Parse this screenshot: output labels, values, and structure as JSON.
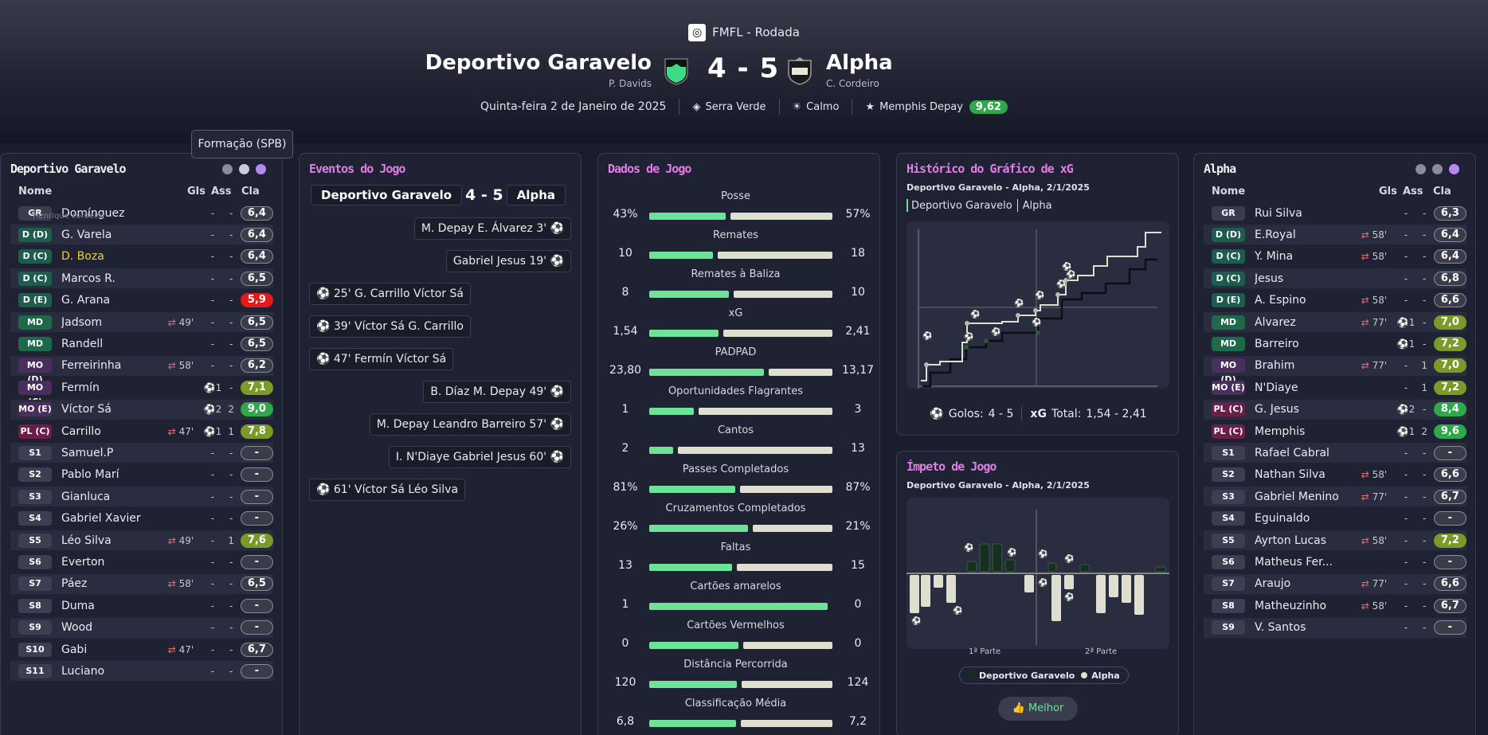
{
  "header": {
    "competition": "FMFL - Rodada",
    "home_team": "Deportivo Garavelo",
    "home_coach": "P. Davids",
    "away_team": "Alpha",
    "away_coach": "C. Cordeiro",
    "score": "4 - 5",
    "date": "Quinta-feira 2 de Janeiro de 2025",
    "stadium": "Serra Verde",
    "weather": "Calmo",
    "potm_name": "Memphis Depay",
    "potm_rating": "9,62"
  },
  "tooltip": "Formação (SPB)",
  "home_panel": {
    "title": "Deportivo Garavelo",
    "h_name": "Nome",
    "h_gls": "Gls",
    "h_ass": "Ass",
    "h_cla": "Cla",
    "ghost_name": "Henrique cordeiro",
    "players": [
      {
        "pos": "GR",
        "name": "Domínguez",
        "sub": "",
        "gls": "-",
        "ass": "-",
        "rating": "6,4"
      },
      {
        "pos": "D (D)",
        "name": "G. Varela",
        "sub": "",
        "gls": "-",
        "ass": "-",
        "rating": "6,4"
      },
      {
        "pos": "D (C)",
        "name": "D. Boza",
        "sub": "",
        "gls": "-",
        "ass": "-",
        "rating": "6,4"
      },
      {
        "pos": "D (C)",
        "name": "Marcos R.",
        "sub": "",
        "gls": "-",
        "ass": "-",
        "rating": "6,5"
      },
      {
        "pos": "D (E)",
        "name": "G. Arana",
        "sub": "",
        "gls": "-",
        "ass": "-",
        "rating": "5,9"
      },
      {
        "pos": "MD",
        "name": "Jadsom",
        "sub": "49'",
        "gls": "-",
        "ass": "-",
        "rating": "6,5"
      },
      {
        "pos": "MD",
        "name": "Randell",
        "sub": "",
        "gls": "-",
        "ass": "-",
        "rating": "6,5"
      },
      {
        "pos": "MO (D)",
        "name": "Ferreirinha",
        "sub": "58'",
        "gls": "-",
        "ass": "-",
        "rating": "6,2"
      },
      {
        "pos": "MO (C)",
        "name": "Fermín",
        "sub": "",
        "gls": "1",
        "ass": "-",
        "rating": "7,1"
      },
      {
        "pos": "MO (E)",
        "name": "Víctor Sá",
        "sub": "",
        "gls": "2",
        "ass": "2",
        "rating": "9,0"
      },
      {
        "pos": "PL (C)",
        "name": "Carrillo",
        "sub": "47'",
        "gls": "1",
        "ass": "1",
        "rating": "7,8"
      },
      {
        "pos": "S1",
        "name": "Samuel.P",
        "sub": "",
        "gls": "-",
        "ass": "-",
        "rating": "-"
      },
      {
        "pos": "S2",
        "name": "Pablo Marí",
        "sub": "",
        "gls": "-",
        "ass": "-",
        "rating": "-"
      },
      {
        "pos": "S3",
        "name": "Gianluca",
        "sub": "",
        "gls": "-",
        "ass": "-",
        "rating": "-"
      },
      {
        "pos": "S4",
        "name": "Gabriel Xavier",
        "sub": "",
        "gls": "-",
        "ass": "-",
        "rating": "-"
      },
      {
        "pos": "S5",
        "name": "Léo Silva",
        "sub": "49'",
        "gls": "-",
        "ass": "1",
        "rating": "7,6"
      },
      {
        "pos": "S6",
        "name": "Éverton",
        "sub": "",
        "gls": "-",
        "ass": "-",
        "rating": "-"
      },
      {
        "pos": "S7",
        "name": "Páez",
        "sub": "58'",
        "gls": "-",
        "ass": "-",
        "rating": "6,5"
      },
      {
        "pos": "S8",
        "name": "Duma",
        "sub": "",
        "gls": "-",
        "ass": "-",
        "rating": "-"
      },
      {
        "pos": "S9",
        "name": "Wood",
        "sub": "",
        "gls": "-",
        "ass": "-",
        "rating": "-"
      },
      {
        "pos": "S10",
        "name": "Gabi",
        "sub": "47'",
        "gls": "-",
        "ass": "-",
        "rating": "6,7"
      },
      {
        "pos": "S11",
        "name": "Luciano",
        "sub": "",
        "gls": "-",
        "ass": "-",
        "rating": "-"
      }
    ]
  },
  "events_panel": {
    "title": "Eventos do Jogo",
    "home": "Deportivo Garavelo",
    "score": "4 - 5",
    "away": "Alpha",
    "events": [
      {
        "side": "away",
        "text": "M. Depay  E. Álvarez 3'"
      },
      {
        "side": "away",
        "text": "Gabriel Jesus 19'"
      },
      {
        "side": "home",
        "text": "25'  G. Carrillo  Víctor Sá"
      },
      {
        "side": "home",
        "text": "39'  Víctor Sá  G. Carrillo"
      },
      {
        "side": "home",
        "text": "47'  Fermín  Víctor Sá"
      },
      {
        "side": "away",
        "text": "B. Díaz  M. Depay 49'"
      },
      {
        "side": "away",
        "text": "M. Depay  Leandro Barreiro 57'"
      },
      {
        "side": "away",
        "text": "I. N'Diaye  Gabriel Jesus 60'"
      },
      {
        "side": "home",
        "text": "61'  Víctor Sá  Léo Silva"
      }
    ]
  },
  "stats_panel": {
    "title": "Dados de Jogo",
    "stats": [
      {
        "label": "Posse",
        "home": "43%",
        "away": "57%",
        "hv": 43,
        "av": 57
      },
      {
        "label": "Remates",
        "home": "10",
        "away": "18",
        "hv": 10,
        "av": 18
      },
      {
        "label": "Remates à Baliza",
        "home": "8",
        "away": "10",
        "hv": 8,
        "av": 10
      },
      {
        "label": "xG",
        "home": "1,54",
        "away": "2,41",
        "hv": 1.54,
        "av": 2.41
      },
      {
        "label": "PADPAD",
        "home": "23,80",
        "away": "13,17",
        "hv": 23.8,
        "av": 13.17
      },
      {
        "label": "Oportunidades Flagrantes",
        "home": "1",
        "away": "3",
        "hv": 1,
        "av": 3
      },
      {
        "label": "Cantos",
        "home": "2",
        "away": "13",
        "hv": 2,
        "av": 13
      },
      {
        "label": "Passes Completados",
        "home": "81%",
        "away": "87%",
        "hv": 81,
        "av": 87
      },
      {
        "label": "Cruzamentos Completados",
        "home": "26%",
        "away": "21%",
        "hv": 26,
        "av": 21
      },
      {
        "label": "Faltas",
        "home": "13",
        "away": "15",
        "hv": 13,
        "av": 15
      },
      {
        "label": "Cartões amarelos",
        "home": "1",
        "away": "0",
        "hv": 1,
        "av": 0
      },
      {
        "label": "Cartões Vermelhos",
        "home": "0",
        "away": "0",
        "hv": 0,
        "av": 0
      },
      {
        "label": "Distância Percorrida",
        "home": "120",
        "away": "124",
        "hv": 120,
        "av": 124
      },
      {
        "label": "Classificação Média",
        "home": "6,8",
        "away": "7,2",
        "hv": 6.8,
        "av": 7.2
      }
    ]
  },
  "xg_panel": {
    "title": "Histórico do Gráfico de xG",
    "subtitle": "Deportivo Garavelo - Alpha, 2/1/2025",
    "legend_home": "Deportivo Garavelo",
    "legend_away": "Alpha",
    "goals_label": "Golos:",
    "goals_value": "4 - 5",
    "xg_label": "xG",
    "total_label": "Total:",
    "total_value": "1,54  -  2,41"
  },
  "momentum_panel": {
    "title": "Ímpeto de Jogo",
    "subtitle": "Deportivo Garavelo - Alpha, 2/1/2025",
    "half1": "1ª Parte",
    "half2": "2ª Parte",
    "legend_home": "Deportivo Garavelo",
    "legend_away": "Alpha",
    "button": "Melhor"
  },
  "away_panel": {
    "title": "Alpha",
    "h_name": "Nome",
    "h_gls": "Gls",
    "h_ass": "Ass",
    "h_cla": "Cla",
    "players": [
      {
        "pos": "GR",
        "name": "Rui Silva",
        "sub": "",
        "gls": "-",
        "ass": "-",
        "rating": "6,3"
      },
      {
        "pos": "D (D)",
        "name": "E.Royal",
        "sub": "58'",
        "gls": "-",
        "ass": "-",
        "rating": "6,4"
      },
      {
        "pos": "D (C)",
        "name": "Y. Mina",
        "sub": "58'",
        "gls": "-",
        "ass": "-",
        "rating": "6,4"
      },
      {
        "pos": "D (C)",
        "name": "Jesus",
        "sub": "",
        "gls": "-",
        "ass": "-",
        "rating": "6,8"
      },
      {
        "pos": "D (E)",
        "name": "A. Espino",
        "sub": "58'",
        "gls": "-",
        "ass": "-",
        "rating": "6,6"
      },
      {
        "pos": "MD",
        "name": "Álvarez",
        "sub": "77'",
        "gls": "1",
        "ass": "-",
        "rating": "7,0"
      },
      {
        "pos": "MD",
        "name": "Barreiro",
        "sub": "",
        "gls": "1",
        "ass": "-",
        "rating": "7,2"
      },
      {
        "pos": "MO (D)",
        "name": "Brahim",
        "sub": "77'",
        "gls": "-",
        "ass": "1",
        "rating": "7,0"
      },
      {
        "pos": "MO (E)",
        "name": "N'Diaye",
        "sub": "",
        "gls": "-",
        "ass": "1",
        "rating": "7,2"
      },
      {
        "pos": "PL (C)",
        "name": "G. Jesus",
        "sub": "",
        "gls": "2",
        "ass": "-",
        "rating": "8,4"
      },
      {
        "pos": "PL (C)",
        "name": "Memphis",
        "sub": "",
        "gls": "1",
        "ass": "2",
        "rating": "9,6"
      },
      {
        "pos": "S1",
        "name": "Rafael Cabral",
        "sub": "",
        "gls": "-",
        "ass": "-",
        "rating": "-"
      },
      {
        "pos": "S2",
        "name": "Nathan Silva",
        "sub": "58'",
        "gls": "-",
        "ass": "-",
        "rating": "6,6"
      },
      {
        "pos": "S3",
        "name": "Gabriel Menino",
        "sub": "77'",
        "gls": "-",
        "ass": "-",
        "rating": "6,7"
      },
      {
        "pos": "S4",
        "name": "Eguinaldo",
        "sub": "",
        "gls": "-",
        "ass": "-",
        "rating": "-"
      },
      {
        "pos": "S5",
        "name": "Ayrton Lucas",
        "sub": "58'",
        "gls": "-",
        "ass": "-",
        "rating": "7,2"
      },
      {
        "pos": "S6",
        "name": "Matheus Fer...",
        "sub": "",
        "gls": "-",
        "ass": "-",
        "rating": "-"
      },
      {
        "pos": "S7",
        "name": "Araujo",
        "sub": "77'",
        "gls": "-",
        "ass": "-",
        "rating": "6,6"
      },
      {
        "pos": "S8",
        "name": "Matheuzinho",
        "sub": "58'",
        "gls": "-",
        "ass": "-",
        "rating": "6,7"
      },
      {
        "pos": "S9",
        "name": "V. Santos",
        "sub": "",
        "gls": "-",
        "ass": "-",
        "rating": "-"
      }
    ]
  },
  "colors": {
    "home_bar": "#6fe29a",
    "away_bar": "#dedfcf",
    "pink_title": "#e27ce6",
    "rating_green": "#2ea84a",
    "rating_olive": "#7a9a2a",
    "rating_red": "#e21a1a"
  }
}
